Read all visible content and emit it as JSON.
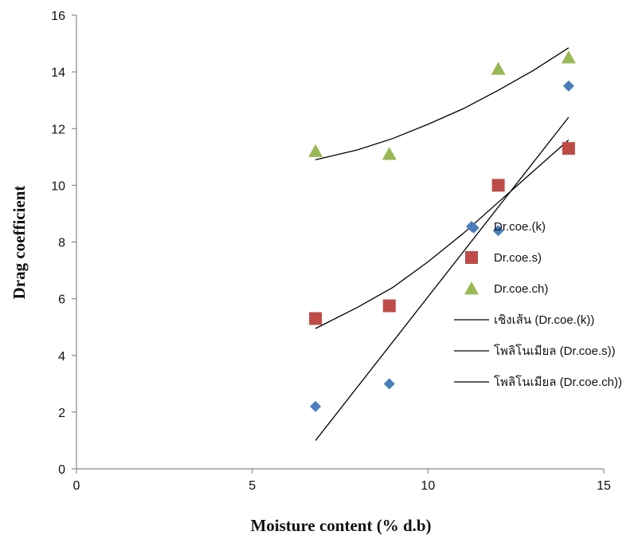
{
  "chart_data": {
    "type": "scatter",
    "xlabel": "Moisture content (% d.b)",
    "ylabel": "Drag coefficient",
    "xlim": [
      0,
      15
    ],
    "ylim": [
      0,
      16
    ],
    "xticks": [
      "0",
      "5",
      "10",
      "15"
    ],
    "yticks": [
      "0",
      "2",
      "4",
      "6",
      "8",
      "10",
      "12",
      "14",
      "16"
    ],
    "grid": false,
    "legend_position": "right",
    "series": [
      {
        "name": "Dr.coe.(k)",
        "marker": "diamond",
        "color": "#4a7ebb",
        "x": [
          6.8,
          8.9,
          11.3,
          12.0,
          14.0
        ],
        "y": [
          2.2,
          3.0,
          8.5,
          8.4,
          13.5
        ]
      },
      {
        "name": "Dr.coe.s)",
        "marker": "square",
        "color": "#be4b48",
        "x": [
          6.8,
          8.9,
          12.0,
          14.0
        ],
        "y": [
          5.3,
          5.75,
          10.0,
          11.3
        ]
      },
      {
        "name": "Dr.coe.ch)",
        "marker": "triangle",
        "color": "#98b954",
        "x": [
          6.8,
          8.9,
          12.0,
          14.0
        ],
        "y": [
          11.2,
          11.1,
          14.1,
          14.5
        ]
      }
    ],
    "trendlines": [
      {
        "name": "เชิงเส้น (Dr.coe.(k))",
        "kind": "linear",
        "color": "#000000",
        "x": [
          6.8,
          14.0
        ],
        "y": [
          1.0,
          12.4
        ]
      },
      {
        "name": "โพลิโนเมียล (Dr.coe.s))",
        "kind": "polynomial",
        "color": "#000000",
        "x": [
          6.8,
          8.0,
          9.0,
          10.0,
          11.0,
          12.0,
          13.0,
          14.0
        ],
        "y": [
          4.95,
          5.7,
          6.4,
          7.3,
          8.3,
          9.4,
          10.5,
          11.6
        ]
      },
      {
        "name": "โพลิโนเมียล (Dr.coe.ch))",
        "kind": "polynomial",
        "color": "#000000",
        "x": [
          6.8,
          8.0,
          9.0,
          10.0,
          11.0,
          12.0,
          13.0,
          14.0
        ],
        "y": [
          10.9,
          11.25,
          11.65,
          12.15,
          12.7,
          13.35,
          14.05,
          14.85
        ]
      }
    ]
  }
}
